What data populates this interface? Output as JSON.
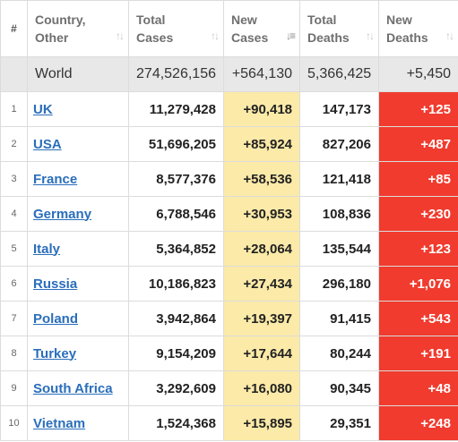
{
  "headers": {
    "num": "#",
    "country": "Country,\nOther",
    "total_cases": "Total\nCases",
    "new_cases": "New\nCases",
    "total_deaths": "Total\nDeaths",
    "new_deaths": "New\nDeaths"
  },
  "world": {
    "country": "World",
    "total_cases": "274,526,156",
    "new_cases": "+564,130",
    "total_deaths": "5,366,425",
    "new_deaths": "+5,450"
  },
  "rows": [
    {
      "num": "1",
      "country": "UK",
      "total_cases": "11,279,428",
      "new_cases": "+90,418",
      "total_deaths": "147,173",
      "new_deaths": "+125"
    },
    {
      "num": "2",
      "country": "USA",
      "total_cases": "51,696,205",
      "new_cases": "+85,924",
      "total_deaths": "827,206",
      "new_deaths": "+487"
    },
    {
      "num": "3",
      "country": "France",
      "total_cases": "8,577,376",
      "new_cases": "+58,536",
      "total_deaths": "121,418",
      "new_deaths": "+85"
    },
    {
      "num": "4",
      "country": "Germany",
      "total_cases": "6,788,546",
      "new_cases": "+30,953",
      "total_deaths": "108,836",
      "new_deaths": "+230"
    },
    {
      "num": "5",
      "country": "Italy",
      "total_cases": "5,364,852",
      "new_cases": "+28,064",
      "total_deaths": "135,544",
      "new_deaths": "+123"
    },
    {
      "num": "6",
      "country": "Russia",
      "total_cases": "10,186,823",
      "new_cases": "+27,434",
      "total_deaths": "296,180",
      "new_deaths": "+1,076"
    },
    {
      "num": "7",
      "country": "Poland",
      "total_cases": "3,942,864",
      "new_cases": "+19,397",
      "total_deaths": "91,415",
      "new_deaths": "+543"
    },
    {
      "num": "8",
      "country": "Turkey",
      "total_cases": "9,154,209",
      "new_cases": "+17,644",
      "total_deaths": "80,244",
      "new_deaths": "+191"
    },
    {
      "num": "9",
      "country": "South Africa",
      "total_cases": "3,292,609",
      "new_cases": "+16,080",
      "total_deaths": "90,345",
      "new_deaths": "+48"
    },
    {
      "num": "10",
      "country": "Vietnam",
      "total_cases": "1,524,368",
      "new_cases": "+15,895",
      "total_deaths": "29,351",
      "new_deaths": "+248"
    }
  ],
  "sort": {
    "column": "new_cases",
    "direction": "descending"
  },
  "colors": {
    "new_cases_highlight": "#fbeaa8",
    "new_deaths_highlight": "#f03b2e",
    "link": "#2a6ebb",
    "world_row": "#e8e8e8"
  },
  "icons": {
    "sort_default": "sort-arrows-icon",
    "sort_active": "sort-descending-icon"
  }
}
